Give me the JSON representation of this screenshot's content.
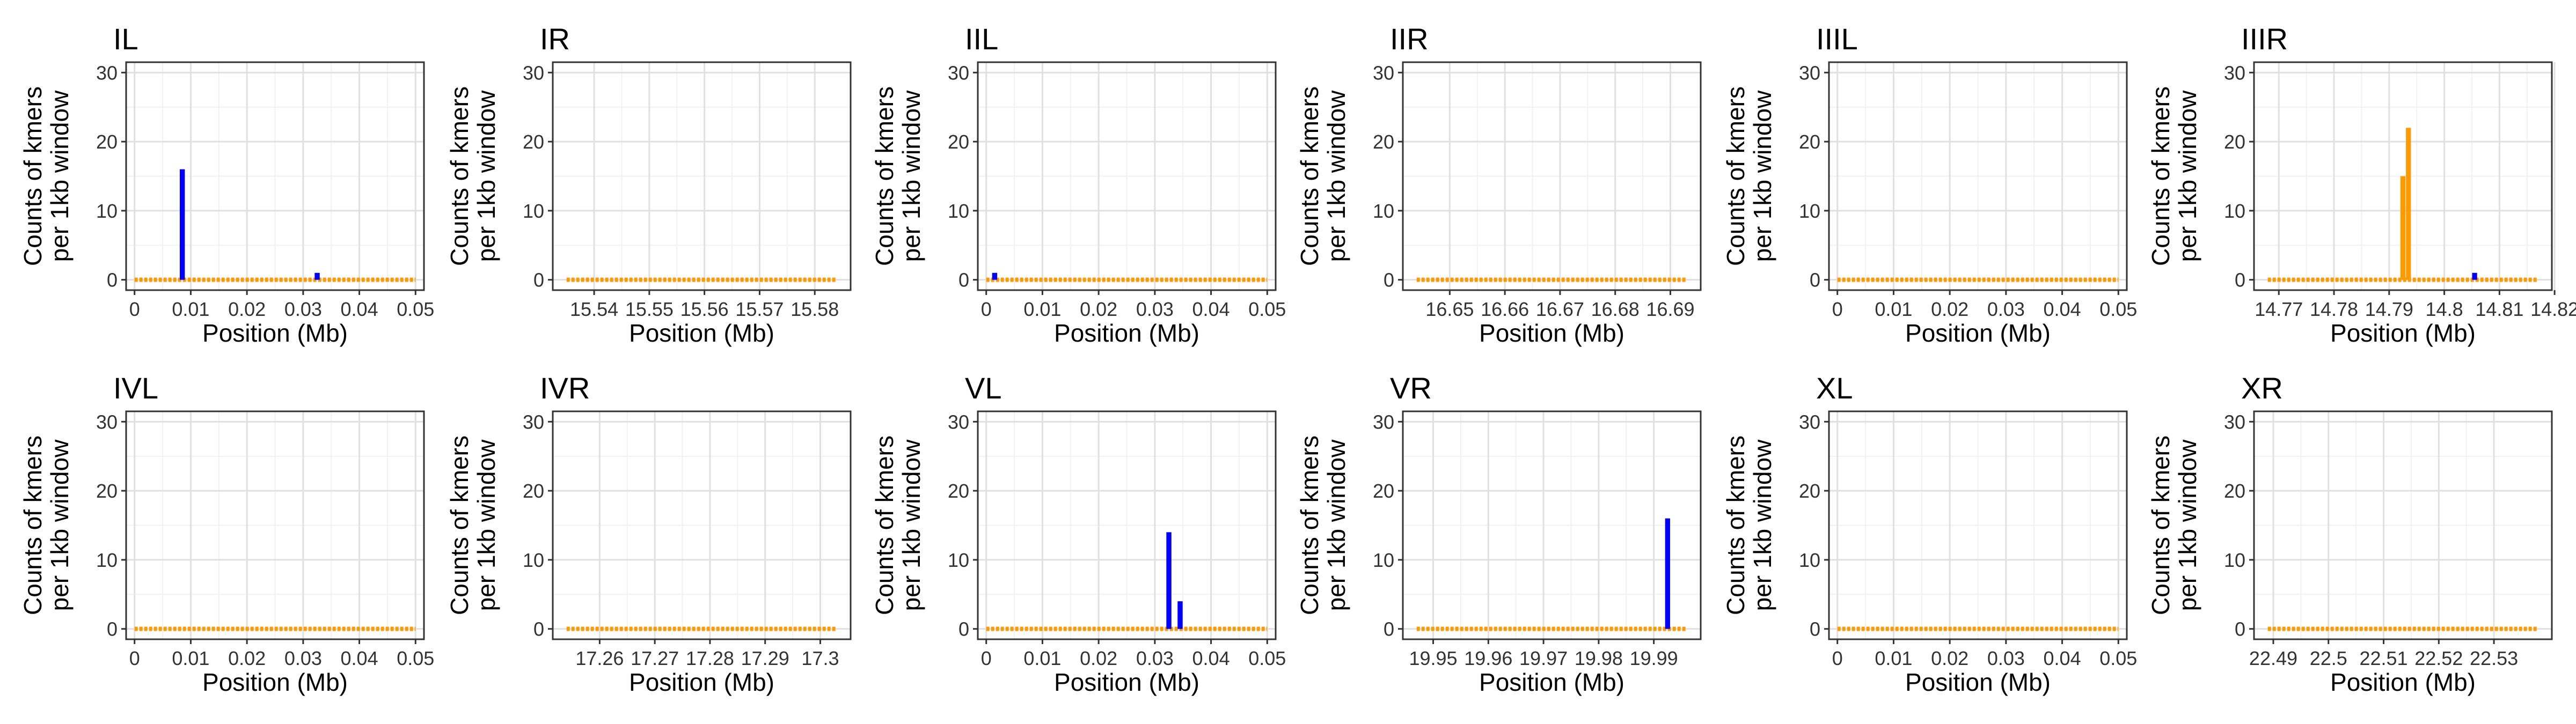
{
  "colors": {
    "blue": "#0000ff",
    "orange": "#ff9900",
    "baseline": "#ff9900"
  },
  "chart_data": [
    {
      "type": "bar",
      "title": "IL",
      "xlabel": "Position (Mb)",
      "ylabel": "Counts of kmers per 1kb window",
      "ylabel_lines": [
        "Counts of kmers",
        "per 1kb window"
      ],
      "xlim": [
        -0.0015,
        0.0515
      ],
      "ylim": [
        -1.5,
        31.5
      ],
      "xticks": [
        0,
        0.01,
        0.02,
        0.03,
        0.04,
        0.05
      ],
      "xtick_labels": [
        "0",
        "0.01",
        "0.02",
        "0.03",
        "0.04",
        "0.05"
      ],
      "yticks": [
        0,
        10,
        20,
        30
      ],
      "ytick_labels": [
        "0",
        "10",
        "20",
        "30"
      ],
      "baseline": {
        "from": 0,
        "to": 0.05
      },
      "series": [
        {
          "color": "blue",
          "x": [
            0.0085,
            0.0325
          ],
          "values": [
            16,
            1
          ]
        }
      ]
    },
    {
      "type": "bar",
      "title": "IR",
      "xlabel": "Position (Mb)",
      "ylabel": "Counts of kmers per 1kb window",
      "ylabel_lines": [
        "Counts of kmers",
        "per 1kb window"
      ],
      "xlim": [
        15.5325,
        15.5865
      ],
      "ylim": [
        -1.5,
        31.5
      ],
      "xticks": [
        15.54,
        15.55,
        15.56,
        15.57,
        15.58
      ],
      "xtick_labels": [
        "15.54",
        "15.55",
        "15.56",
        "15.57",
        "15.58"
      ],
      "yticks": [
        0,
        10,
        20,
        30
      ],
      "ytick_labels": [
        "0",
        "10",
        "20",
        "30"
      ],
      "baseline": {
        "from": 15.535,
        "to": 15.584
      },
      "series": []
    },
    {
      "type": "bar",
      "title": "IIL",
      "xlabel": "Position (Mb)",
      "ylabel": "Counts of kmers per 1kb window",
      "ylabel_lines": [
        "Counts of kmers",
        "per 1kb window"
      ],
      "xlim": [
        -0.0015,
        0.0515
      ],
      "ylim": [
        -1.5,
        31.5
      ],
      "xticks": [
        0,
        0.01,
        0.02,
        0.03,
        0.04,
        0.05
      ],
      "xtick_labels": [
        "0",
        "0.01",
        "0.02",
        "0.03",
        "0.04",
        "0.05"
      ],
      "yticks": [
        0,
        10,
        20,
        30
      ],
      "ytick_labels": [
        "0",
        "10",
        "20",
        "30"
      ],
      "baseline": {
        "from": 0,
        "to": 0.05
      },
      "series": [
        {
          "color": "blue",
          "x": [
            0.0015
          ],
          "values": [
            1
          ]
        }
      ]
    },
    {
      "type": "bar",
      "title": "IIR",
      "xlabel": "Position (Mb)",
      "ylabel": "Counts of kmers per 1kb window",
      "ylabel_lines": [
        "Counts of kmers",
        "per 1kb window"
      ],
      "xlim": [
        16.6415,
        16.6955
      ],
      "ylim": [
        -1.5,
        31.5
      ],
      "xticks": [
        16.65,
        16.66,
        16.67,
        16.68,
        16.69
      ],
      "xtick_labels": [
        "16.65",
        "16.66",
        "16.67",
        "16.68",
        "16.69"
      ],
      "yticks": [
        0,
        10,
        20,
        30
      ],
      "ytick_labels": [
        "0",
        "10",
        "20",
        "30"
      ],
      "baseline": {
        "from": 16.644,
        "to": 16.693
      },
      "series": []
    },
    {
      "type": "bar",
      "title": "IIIL",
      "xlabel": "Position (Mb)",
      "ylabel": "Counts of kmers per 1kb window",
      "ylabel_lines": [
        "Counts of kmers",
        "per 1kb window"
      ],
      "xlim": [
        -0.0015,
        0.0515
      ],
      "ylim": [
        -1.5,
        31.5
      ],
      "xticks": [
        0,
        0.01,
        0.02,
        0.03,
        0.04,
        0.05
      ],
      "xtick_labels": [
        "0",
        "0.01",
        "0.02",
        "0.03",
        "0.04",
        "0.05"
      ],
      "yticks": [
        0,
        10,
        20,
        30
      ],
      "ytick_labels": [
        "0",
        "10",
        "20",
        "30"
      ],
      "baseline": {
        "from": 0,
        "to": 0.05
      },
      "series": []
    },
    {
      "type": "bar",
      "title": "IIIR",
      "xlabel": "Position (Mb)",
      "ylabel": "Counts of kmers per 1kb window",
      "ylabel_lines": [
        "Counts of kmers",
        "per 1kb window"
      ],
      "xlim": [
        14.7655,
        14.8195
      ],
      "ylim": [
        -1.5,
        31.5
      ],
      "xticks": [
        14.77,
        14.78,
        14.79,
        14.8,
        14.81,
        14.82
      ],
      "xtick_labels": [
        "14.77",
        "14.78",
        "14.79",
        "14.8",
        "14.81",
        "14.82"
      ],
      "yticks": [
        0,
        10,
        20,
        30
      ],
      "ytick_labels": [
        "0",
        "10",
        "20",
        "30"
      ],
      "baseline": {
        "from": 14.768,
        "to": 14.817
      },
      "series": [
        {
          "color": "orange",
          "x": [
            14.7925,
            14.7935
          ],
          "values": [
            15,
            22
          ]
        },
        {
          "color": "blue",
          "x": [
            14.8055
          ],
          "values": [
            1
          ]
        }
      ]
    },
    {
      "type": "bar",
      "title": "IVL",
      "xlabel": "Position (Mb)",
      "ylabel": "Counts of kmers per 1kb window",
      "ylabel_lines": [
        "Counts of kmers",
        "per 1kb window"
      ],
      "xlim": [
        -0.0015,
        0.0515
      ],
      "ylim": [
        -1.5,
        31.5
      ],
      "xticks": [
        0,
        0.01,
        0.02,
        0.03,
        0.04,
        0.05
      ],
      "xtick_labels": [
        "0",
        "0.01",
        "0.02",
        "0.03",
        "0.04",
        "0.05"
      ],
      "yticks": [
        0,
        10,
        20,
        30
      ],
      "ytick_labels": [
        "0",
        "10",
        "20",
        "30"
      ],
      "baseline": {
        "from": 0,
        "to": 0.05
      },
      "series": []
    },
    {
      "type": "bar",
      "title": "IVR",
      "xlabel": "Position (Mb)",
      "ylabel": "Counts of kmers per 1kb window",
      "ylabel_lines": [
        "Counts of kmers",
        "per 1kb window"
      ],
      "xlim": [
        17.2515,
        17.3055
      ],
      "ylim": [
        -1.5,
        31.5
      ],
      "xticks": [
        17.26,
        17.27,
        17.28,
        17.29,
        17.3
      ],
      "xtick_labels": [
        "17.26",
        "17.27",
        "17.28",
        "17.29",
        "17.3"
      ],
      "yticks": [
        0,
        10,
        20,
        30
      ],
      "ytick_labels": [
        "0",
        "10",
        "20",
        "30"
      ],
      "baseline": {
        "from": 17.254,
        "to": 17.303
      },
      "series": []
    },
    {
      "type": "bar",
      "title": "VL",
      "xlabel": "Position (Mb)",
      "ylabel": "Counts of kmers per 1kb window",
      "ylabel_lines": [
        "Counts of kmers",
        "per 1kb window"
      ],
      "xlim": [
        -0.0015,
        0.0515
      ],
      "ylim": [
        -1.5,
        31.5
      ],
      "xticks": [
        0,
        0.01,
        0.02,
        0.03,
        0.04,
        0.05
      ],
      "xtick_labels": [
        "0",
        "0.01",
        "0.02",
        "0.03",
        "0.04",
        "0.05"
      ],
      "yticks": [
        0,
        10,
        20,
        30
      ],
      "ytick_labels": [
        "0",
        "10",
        "20",
        "30"
      ],
      "baseline": {
        "from": 0,
        "to": 0.05
      },
      "series": [
        {
          "color": "blue",
          "x": [
            0.0325,
            0.0345
          ],
          "values": [
            14,
            4
          ]
        }
      ]
    },
    {
      "type": "bar",
      "title": "VR",
      "xlabel": "Position (Mb)",
      "ylabel": "Counts of kmers per 1kb window",
      "ylabel_lines": [
        "Counts of kmers",
        "per 1kb window"
      ],
      "xlim": [
        19.9445,
        19.9985
      ],
      "ylim": [
        -1.5,
        31.5
      ],
      "xticks": [
        19.95,
        19.96,
        19.97,
        19.98,
        19.99
      ],
      "xtick_labels": [
        "19.95",
        "19.96",
        "19.97",
        "19.98",
        "19.99"
      ],
      "yticks": [
        0,
        10,
        20,
        30
      ],
      "ytick_labels": [
        "0",
        "10",
        "20",
        "30"
      ],
      "baseline": {
        "from": 19.947,
        "to": 19.996
      },
      "series": [
        {
          "color": "blue",
          "x": [
            19.9925
          ],
          "values": [
            16
          ]
        }
      ]
    },
    {
      "type": "bar",
      "title": "XL",
      "xlabel": "Position (Mb)",
      "ylabel": "Counts of kmers per 1kb window",
      "ylabel_lines": [
        "Counts of kmers",
        "per 1kb window"
      ],
      "xlim": [
        -0.0015,
        0.0515
      ],
      "ylim": [
        -1.5,
        31.5
      ],
      "xticks": [
        0,
        0.01,
        0.02,
        0.03,
        0.04,
        0.05
      ],
      "xtick_labels": [
        "0",
        "0.01",
        "0.02",
        "0.03",
        "0.04",
        "0.05"
      ],
      "yticks": [
        0,
        10,
        20,
        30
      ],
      "ytick_labels": [
        "0",
        "10",
        "20",
        "30"
      ],
      "baseline": {
        "from": 0,
        "to": 0.05
      },
      "series": []
    },
    {
      "type": "bar",
      "title": "XR",
      "xlabel": "Position (Mb)",
      "ylabel": "Counts of kmers per 1kb window",
      "ylabel_lines": [
        "Counts of kmers",
        "per 1kb window"
      ],
      "xlim": [
        22.4865,
        22.5405
      ],
      "ylim": [
        -1.5,
        31.5
      ],
      "xticks": [
        22.49,
        22.5,
        22.51,
        22.52,
        22.53
      ],
      "xtick_labels": [
        "22.49",
        "22.5",
        "22.51",
        "22.52",
        "22.53"
      ],
      "yticks": [
        0,
        10,
        20,
        30
      ],
      "ytick_labels": [
        "0",
        "10",
        "20",
        "30"
      ],
      "baseline": {
        "from": 22.489,
        "to": 22.538
      },
      "series": []
    }
  ]
}
